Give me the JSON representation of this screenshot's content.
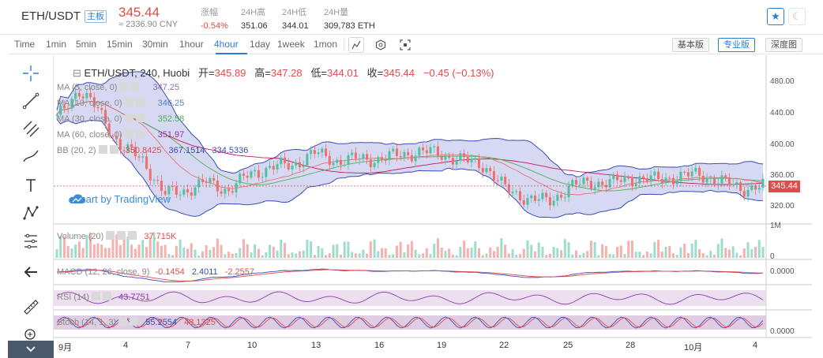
{
  "header": {
    "pair": "ETH/USDT",
    "main_badge": "主板",
    "price": "345.44",
    "cny": "≈ 2336.90 CNY",
    "stats": [
      {
        "label": "涨幅",
        "value": "-0.54%",
        "red": true
      },
      {
        "label": "24H高",
        "value": "351.06",
        "red": false
      },
      {
        "label": "24H低",
        "value": "344.01",
        "red": false
      },
      {
        "label": "24H量",
        "value": "309,783 ETH",
        "red": false
      }
    ],
    "star_icon": "star-icon",
    "moon_icon": "moon-icon"
  },
  "toolbar": {
    "timeframes": [
      "Time",
      "1min",
      "5min",
      "15min",
      "30min",
      "1hour",
      "4hour",
      "1day",
      "1week",
      "1mon"
    ],
    "active_timeframe": "4hour",
    "tools": [
      "candle-type-icon",
      "settings-hex-icon",
      "fullscreen-icon"
    ],
    "views": [
      "基本版",
      "专业版",
      "深度图"
    ],
    "active_view": "专业版"
  },
  "rail": {
    "tools": [
      "crosshair-icon",
      "trendline-icon",
      "fib-icon",
      "brush-icon",
      "text-icon",
      "pattern-icon",
      "gann-icon",
      "back-arrow-icon",
      "ruler-icon",
      "zoom-icon"
    ],
    "bottom_icon": "chevron-down-icon"
  },
  "chart": {
    "ohlc": {
      "symbol": "ETH/USDT, 240, Huobi",
      "open_label": "开=",
      "open": "345.89",
      "high_label": "高=",
      "high": "347.28",
      "low_label": "低=",
      "low": "344.01",
      "close_label": "收=",
      "close": "345.44",
      "change": "−0.45 (−0.13%)"
    },
    "legends": [
      {
        "name": "MA (5, close, 0)",
        "value": "347.25",
        "color": "#8e6bb8"
      },
      {
        "name": "MA (10, close, 0)",
        "value": "346.25",
        "color": "#4f85c4"
      },
      {
        "name": "MA (30, close, 0)",
        "value": "352.58",
        "color": "#4caf50"
      },
      {
        "name": "MA (60, close, 0)",
        "value": "351.97",
        "color": "#9c27b0"
      }
    ],
    "bb": {
      "name": "BB (20, 2)",
      "v1": "350.8425",
      "v2": "367.1514",
      "v3": "334.5336"
    },
    "watermark": "Chart by TradingView",
    "price_axis": [
      "480.00",
      "440.00",
      "400.00",
      "360.00",
      "320.00"
    ],
    "last_price": "345.44",
    "volume": {
      "name": "Volume (20)",
      "value": "37.715K",
      "axis_top": "1M",
      "axis_bottom": "0"
    },
    "macd": {
      "name": "MACD (12, 26, close, 9)",
      "v1": "-0.1454",
      "v2": "2.4011",
      "v3": "-2.2557",
      "axis": "0.0000"
    },
    "rsi": {
      "name": "RSI (14)",
      "value": "43.7751"
    },
    "stoch": {
      "name": "Stoch (14, 1, 3)",
      "v1": "55.2554",
      "v2": "48.1325",
      "axis": "0.0000"
    },
    "date_labels": [
      "9月",
      "4",
      "7",
      "10",
      "13",
      "16",
      "19",
      "22",
      "25",
      "28",
      "10月",
      "4"
    ],
    "colors": {
      "up": "#4fc1a0",
      "down": "#ef6f6c",
      "bb_fill": "#c6c9ec",
      "bb_line": "#3b4bb8",
      "rsi_fill": "#e7d8ea",
      "stoch_fill": "#d9c0dc",
      "accent": "#2b7dd8"
    }
  },
  "chart_data": {
    "type": "candlestick",
    "title": "ETH/USDT, 240, Huobi",
    "x_labels": [
      "9月",
      "4",
      "7",
      "10",
      "13",
      "16",
      "19",
      "22",
      "25",
      "28",
      "10月",
      "4"
    ],
    "y_ticks": [
      320,
      360,
      400,
      440,
      480
    ],
    "ylim": [
      300,
      500
    ],
    "close_series": [
      {
        "date": "9月",
        "close": 432
      },
      {
        "date": "2",
        "close": 470
      },
      {
        "date": "3",
        "close": 440
      },
      {
        "date": "4",
        "close": 395
      },
      {
        "date": "5",
        "close": 380
      },
      {
        "date": "6",
        "close": 335
      },
      {
        "date": "7",
        "close": 340
      },
      {
        "date": "8",
        "close": 350
      },
      {
        "date": "9",
        "close": 340
      },
      {
        "date": "10",
        "close": 360
      },
      {
        "date": "11",
        "close": 370
      },
      {
        "date": "12",
        "close": 372
      },
      {
        "date": "13",
        "close": 388
      },
      {
        "date": "14",
        "close": 378
      },
      {
        "date": "15",
        "close": 380
      },
      {
        "date": "16",
        "close": 380
      },
      {
        "date": "17",
        "close": 385
      },
      {
        "date": "18",
        "close": 390
      },
      {
        "date": "19",
        "close": 386
      },
      {
        "date": "20",
        "close": 378
      },
      {
        "date": "21",
        "close": 372
      },
      {
        "date": "22",
        "close": 340
      },
      {
        "date": "23",
        "close": 330
      },
      {
        "date": "24",
        "close": 325
      },
      {
        "date": "25",
        "close": 345
      },
      {
        "date": "26",
        "close": 350
      },
      {
        "date": "27",
        "close": 350
      },
      {
        "date": "28",
        "close": 356
      },
      {
        "date": "29",
        "close": 353
      },
      {
        "date": "30",
        "close": 358
      },
      {
        "date": "10月",
        "close": 360
      },
      {
        "date": "2",
        "close": 352
      },
      {
        "date": "3",
        "close": 342
      },
      {
        "date": "4",
        "close": 345.44
      }
    ],
    "last_price": 345.44
  }
}
